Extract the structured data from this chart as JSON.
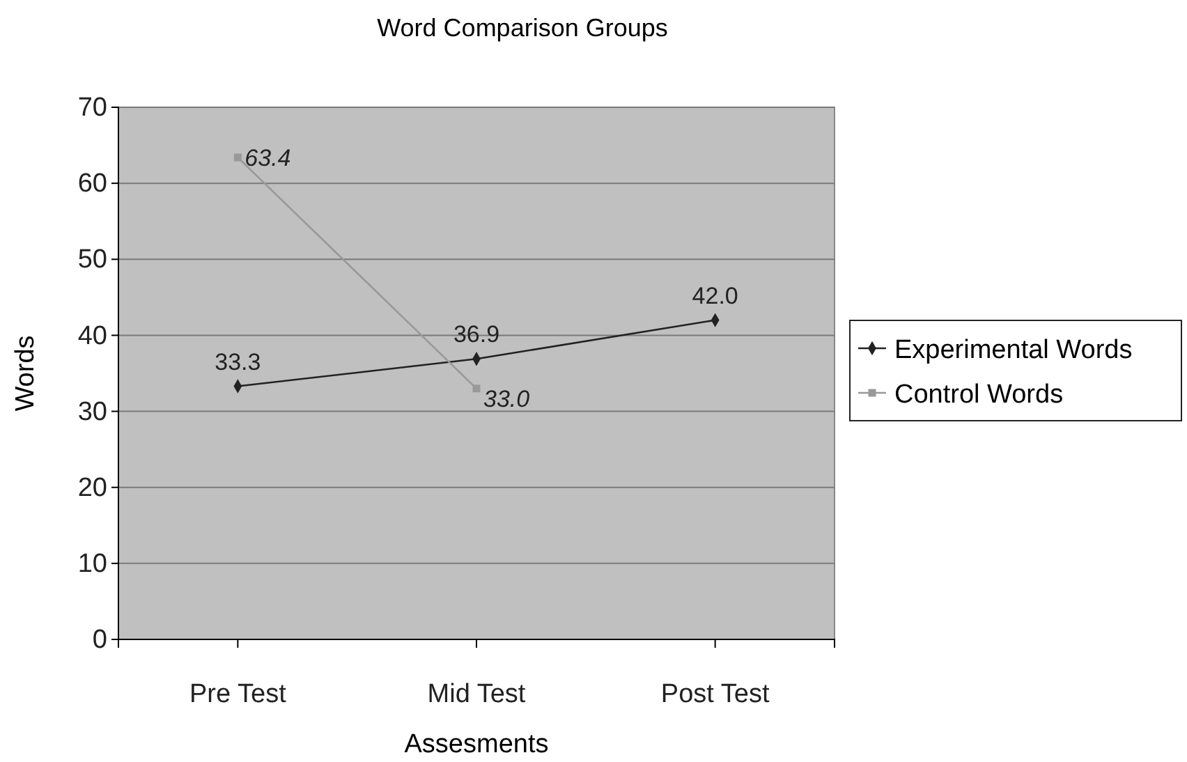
{
  "chart_data": {
    "type": "line",
    "title": "Word Comparison Groups",
    "xlabel": "Assesments",
    "ylabel": "Words",
    "categories": [
      "Pre Test",
      "Mid Test",
      "Post Test"
    ],
    "series": [
      {
        "name": "Experimental Words",
        "color": "#222222",
        "marker": "diamond",
        "values": [
          33.3,
          36.9,
          42.0
        ],
        "value_labels": [
          "33.3",
          "36.9",
          "42.0"
        ]
      },
      {
        "name": "Control Words",
        "color": "#999999",
        "marker": "square",
        "values": [
          63.4,
          33.0,
          null
        ],
        "value_labels": [
          "63.4",
          "33.0",
          null
        ]
      }
    ],
    "ylim": [
      0,
      70
    ],
    "yticks": [
      0,
      10,
      20,
      30,
      40,
      50,
      60,
      70
    ],
    "grid": "y",
    "legend": "right"
  }
}
